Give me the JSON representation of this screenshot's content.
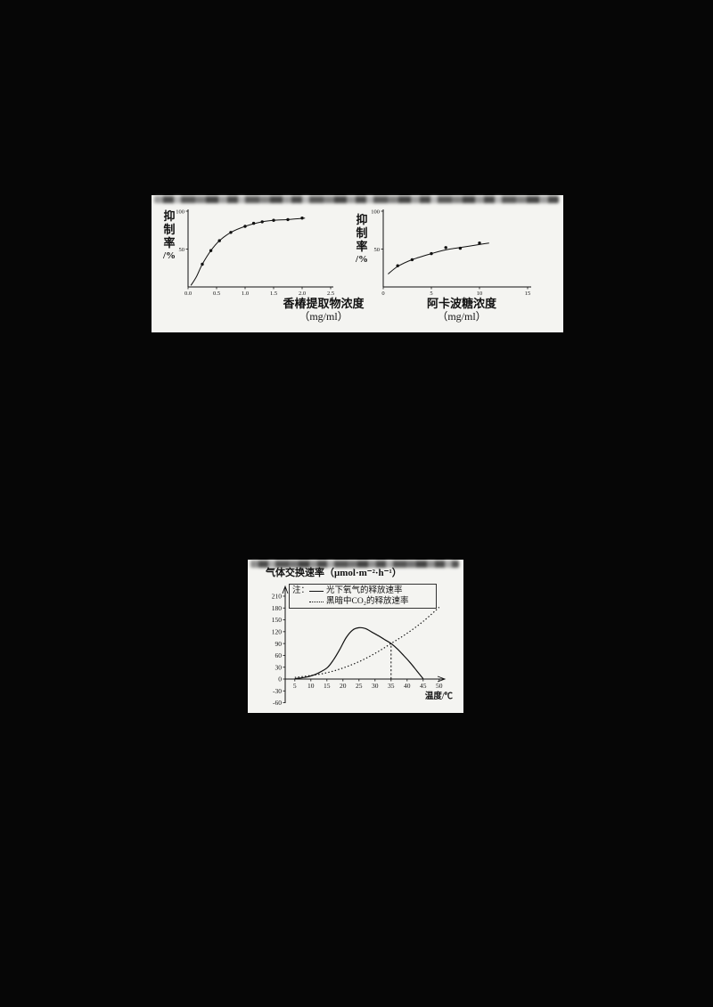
{
  "colors": {
    "background": "#060606",
    "panel": "#f4f4f1",
    "ink": "#111111"
  },
  "chart_data": [
    {
      "id": "toona-extract",
      "type": "scatter",
      "title": "",
      "ylabel": "抑制率/%",
      "ylabel_chars": [
        "抑",
        "制",
        "率",
        "/%"
      ],
      "xlabel_line1": "香椿提取物浓度",
      "xlabel_line2": "（mg/ml）",
      "xlim": [
        0,
        2.5
      ],
      "ylim": [
        0,
        100
      ],
      "xticks": [
        "0.0",
        "0.5",
        "1.0",
        "1.5",
        "2.0",
        "2.5"
      ],
      "xtick_values": [
        0,
        0.5,
        1.0,
        1.5,
        2.0,
        2.5
      ],
      "yticks": [
        "100",
        "50"
      ],
      "ytick_values": [
        100,
        50
      ],
      "points": [
        [
          0.25,
          30
        ],
        [
          0.4,
          48
        ],
        [
          0.55,
          61
        ],
        [
          0.75,
          72
        ],
        [
          1.0,
          80
        ],
        [
          1.15,
          84
        ],
        [
          1.3,
          86
        ],
        [
          1.5,
          88
        ],
        [
          1.75,
          89
        ],
        [
          2.0,
          91
        ]
      ],
      "curve": [
        [
          0.05,
          2
        ],
        [
          0.15,
          14
        ],
        [
          0.25,
          30
        ],
        [
          0.4,
          48
        ],
        [
          0.55,
          61
        ],
        [
          0.75,
          72
        ],
        [
          1.0,
          80
        ],
        [
          1.3,
          86
        ],
        [
          1.5,
          88
        ],
        [
          1.75,
          89
        ],
        [
          2.05,
          91
        ]
      ]
    },
    {
      "id": "acarbose",
      "type": "scatter",
      "title": "",
      "ylabel": "抑制率/%",
      "ylabel_chars": [
        "抑",
        "制",
        "率",
        "/%"
      ],
      "xlabel_line1": "阿卡波糖浓度",
      "xlabel_line2": "（mg/ml）",
      "xlim": [
        0,
        15
      ],
      "ylim": [
        0,
        100
      ],
      "xticks": [
        "0",
        "5",
        "10",
        "15"
      ],
      "xtick_values": [
        0,
        5,
        10,
        15
      ],
      "yticks": [
        "100",
        "50"
      ],
      "ytick_values": [
        100,
        50
      ],
      "points": [
        [
          1.5,
          28
        ],
        [
          3,
          36
        ],
        [
          5,
          44
        ],
        [
          6.5,
          52
        ],
        [
          8,
          51
        ],
        [
          10,
          58
        ]
      ],
      "curve": [
        [
          0.5,
          17
        ],
        [
          1.5,
          27
        ],
        [
          3,
          36
        ],
        [
          5,
          44
        ],
        [
          6.5,
          49
        ],
        [
          8,
          52
        ],
        [
          10,
          56
        ],
        [
          11,
          58
        ]
      ]
    },
    {
      "id": "gas-exchange",
      "type": "line",
      "title": "气体交换速率（μmol·m⁻²·h⁻¹）",
      "note_label": "注：",
      "xlabel": "温度/℃",
      "xlim": [
        0,
        52
      ],
      "ylim": [
        -60,
        225
      ],
      "yticks": [
        "210",
        "180",
        "150",
        "120",
        "90",
        "60",
        "30",
        "0",
        "-30",
        "-60"
      ],
      "ytick_values": [
        210,
        180,
        150,
        120,
        90,
        60,
        30,
        0,
        -30,
        -60
      ],
      "xticks": [
        "5",
        "10",
        "15",
        "20",
        "25",
        "30",
        "35",
        "40",
        "45",
        "50"
      ],
      "xtick_values": [
        5,
        10,
        15,
        20,
        25,
        30,
        35,
        40,
        45,
        50
      ],
      "series": [
        {
          "name": "光下氧气的释放速率",
          "line": "solid",
          "points": [
            [
              5,
              1
            ],
            [
              8,
              4
            ],
            [
              10,
              8
            ],
            [
              12,
              14
            ],
            [
              15,
              28
            ],
            [
              17,
              48
            ],
            [
              19,
              75
            ],
            [
              21,
              105
            ],
            [
              23,
              124
            ],
            [
              25,
              130
            ],
            [
              27,
              128
            ],
            [
              29,
              119
            ],
            [
              31,
              110
            ],
            [
              33,
              100
            ],
            [
              35,
              90
            ],
            [
              37,
              76
            ],
            [
              39,
              59
            ],
            [
              41,
              41
            ],
            [
              43,
              21
            ],
            [
              45,
              1
            ]
          ]
        },
        {
          "name": "黑暗中CO₂的释放速率",
          "line": "dotted",
          "points": [
            [
              5,
              4
            ],
            [
              10,
              9
            ],
            [
              15,
              16
            ],
            [
              20,
              28
            ],
            [
              25,
              44
            ],
            [
              30,
              65
            ],
            [
              35,
              90
            ],
            [
              40,
              116
            ],
            [
              45,
              146
            ],
            [
              50,
              182
            ]
          ]
        }
      ],
      "guide_x": 35,
      "guide_y": 90
    }
  ]
}
